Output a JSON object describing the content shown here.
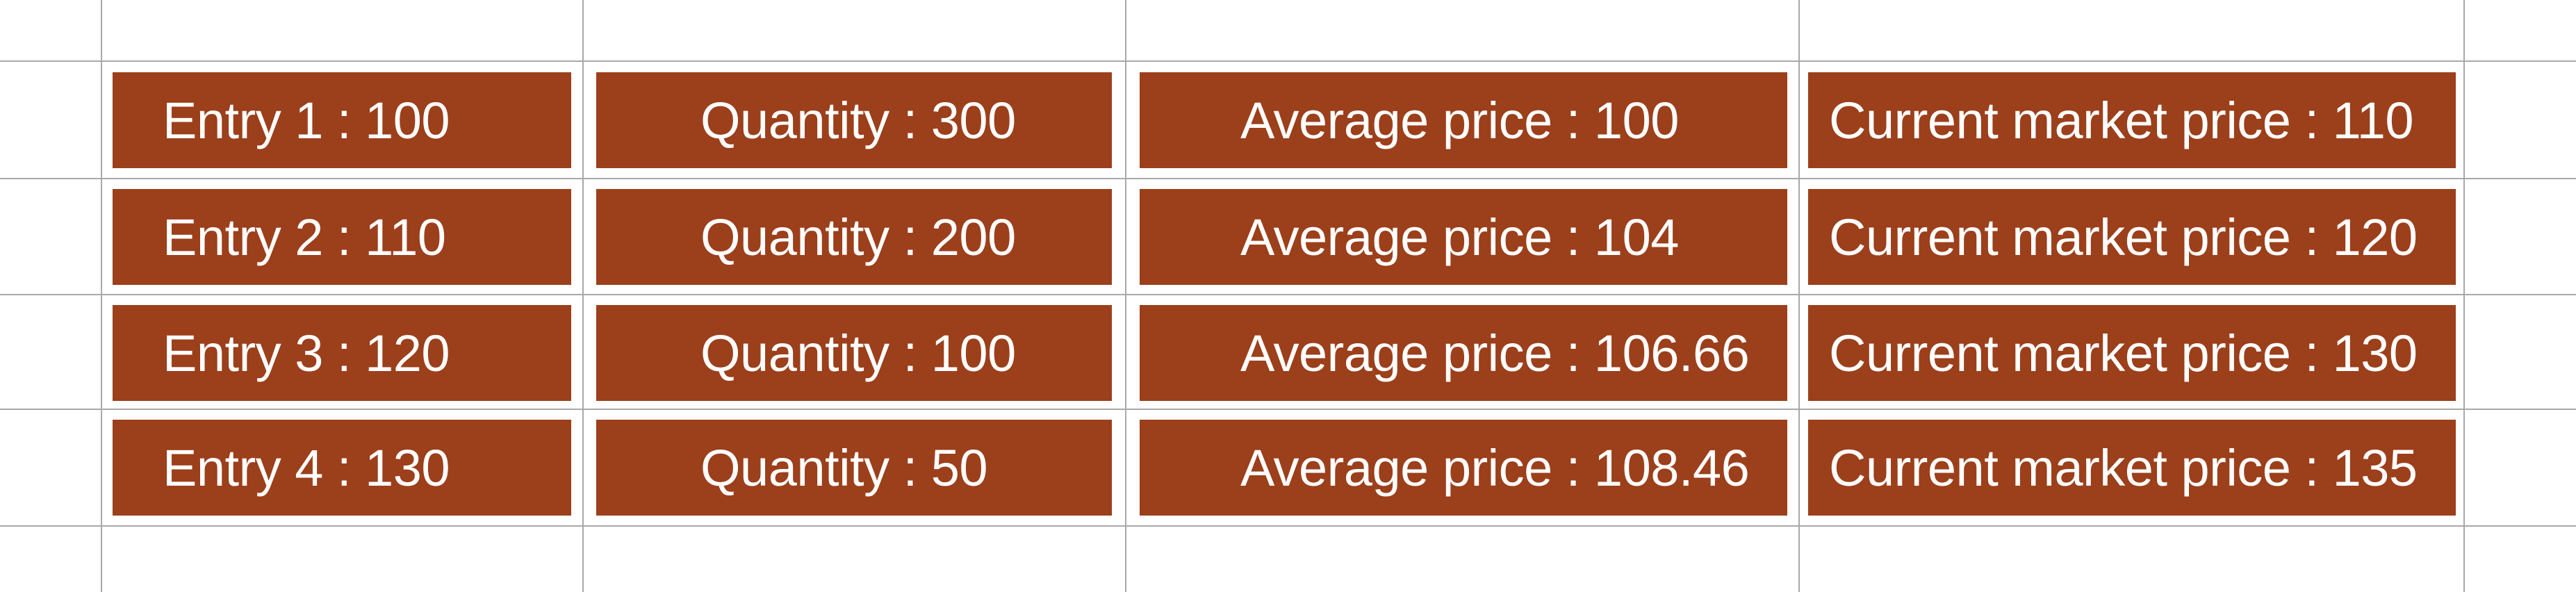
{
  "table": {
    "rows": [
      {
        "entry": "Entry 1 : 100",
        "quantity": "Quantity : 300",
        "average_price": "Average price : 100",
        "current_market_price": "Current market price : 110"
      },
      {
        "entry": "Entry 2 : 110",
        "quantity": "Quantity : 200",
        "average_price": "Average price : 104",
        "current_market_price": "Current market price : 120"
      },
      {
        "entry": "Entry 3 : 120",
        "quantity": "Quantity : 100",
        "average_price": "Average price : 106.66",
        "current_market_price": "Current market price : 130"
      },
      {
        "entry": "Entry 4 : 130",
        "quantity": "Quantity : 50",
        "average_price": "Average price : 108.46",
        "current_market_price": "Current market price : 135"
      }
    ]
  },
  "colors": {
    "cell_background": "#9c3f1b",
    "cell_text": "#ffffff",
    "grid_line": "#a8a8a8"
  }
}
